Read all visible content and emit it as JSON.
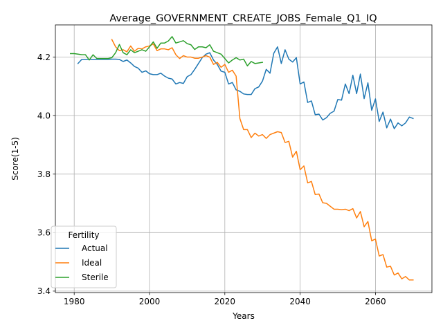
{
  "chart_data": {
    "type": "line",
    "title": "Average_GOVERNMENT_CREATE_JOBS_Female_Q1_IQ",
    "xlabel": "Years",
    "ylabel": "Score(1-5)",
    "xlim": [
      1975,
      2075
    ],
    "ylim": [
      3.395,
      4.31
    ],
    "xticks": [
      1980,
      2000,
      2020,
      2040,
      2060
    ],
    "yticks": [
      3.4,
      3.6,
      3.8,
      4.0,
      4.2
    ],
    "ytick_labels": [
      "3.4",
      "3.6",
      "3.8",
      "4.0",
      "4.2"
    ],
    "grid": true,
    "legend": {
      "title": "Fertility",
      "position": "lower-left"
    },
    "series": [
      {
        "name": "Actual",
        "color": "#1f77b4",
        "x": [
          1981,
          1982,
          1983,
          1984,
          1985,
          1986,
          1987,
          1988,
          1989,
          1990,
          1991,
          1992,
          1993,
          1994,
          1995,
          1996,
          1997,
          1998,
          1999,
          2000,
          2001,
          2002,
          2003,
          2004,
          2005,
          2006,
          2007,
          2008,
          2009,
          2010,
          2011,
          2012,
          2013,
          2014,
          2015,
          2016,
          2017,
          2018,
          2019,
          2020,
          2021,
          2022,
          2023,
          2024,
          2025,
          2026,
          2027,
          2028,
          2029,
          2030,
          2031,
          2032,
          2033,
          2034,
          2035,
          2036,
          2037,
          2038,
          2039,
          2040,
          2041,
          2042,
          2043,
          2044,
          2045,
          2046,
          2047,
          2048,
          2049,
          2050,
          2051,
          2052,
          2053,
          2054,
          2055,
          2056,
          2057,
          2058,
          2059,
          2060,
          2061,
          2062,
          2063,
          2064,
          2065,
          2066,
          2067,
          2068,
          2069,
          2070
        ],
        "y": [
          4.178,
          4.192,
          4.192,
          4.192,
          4.192,
          4.192,
          4.192,
          4.192,
          4.192,
          4.193,
          4.193,
          4.192,
          4.185,
          4.19,
          4.18,
          4.168,
          4.162,
          4.148,
          4.153,
          4.143,
          4.14,
          4.14,
          4.145,
          4.135,
          4.128,
          4.125,
          4.108,
          4.113,
          4.11,
          4.133,
          4.14,
          4.158,
          4.178,
          4.198,
          4.21,
          4.215,
          4.19,
          4.175,
          4.152,
          4.148,
          4.108,
          4.113,
          4.088,
          4.083,
          4.074,
          4.072,
          4.072,
          4.092,
          4.098,
          4.118,
          4.158,
          4.145,
          4.213,
          4.235,
          4.178,
          4.225,
          4.193,
          4.183,
          4.198,
          4.108,
          4.115,
          4.045,
          4.05,
          4.003,
          4.005,
          3.985,
          3.993,
          4.008,
          4.015,
          4.055,
          4.053,
          4.108,
          4.075,
          4.138,
          4.075,
          4.142,
          4.058,
          4.112,
          4.018,
          4.057,
          3.98,
          4.012,
          3.958,
          3.988,
          3.955,
          3.975,
          3.965,
          3.975,
          3.995,
          3.99
        ]
      },
      {
        "name": "Ideal",
        "color": "#ff7f0e",
        "x": [
          1990,
          1991,
          1992,
          1993,
          1994,
          1995,
          1996,
          1997,
          1998,
          1999,
          2000,
          2001,
          2002,
          2003,
          2004,
          2005,
          2006,
          2007,
          2008,
          2009,
          2010,
          2011,
          2012,
          2013,
          2014,
          2015,
          2016,
          2017,
          2018,
          2019,
          2020,
          2021,
          2022,
          2023,
          2024,
          2025,
          2026,
          2027,
          2028,
          2029,
          2030,
          2031,
          2032,
          2033,
          2034,
          2035,
          2036,
          2037,
          2038,
          2039,
          2040,
          2041,
          2042,
          2043,
          2044,
          2045,
          2046,
          2047,
          2048,
          2049,
          2050,
          2051,
          2052,
          2053,
          2054,
          2055,
          2056,
          2057,
          2058,
          2059,
          2060,
          2061,
          2062,
          2063,
          2064,
          2065,
          2066,
          2067,
          2068,
          2069,
          2070
        ],
        "y": [
          4.26,
          4.235,
          4.222,
          4.225,
          4.218,
          4.238,
          4.22,
          4.23,
          4.228,
          4.235,
          4.238,
          4.245,
          4.222,
          4.228,
          4.228,
          4.225,
          4.232,
          4.208,
          4.195,
          4.205,
          4.2,
          4.2,
          4.196,
          4.196,
          4.2,
          4.205,
          4.2,
          4.175,
          4.182,
          4.165,
          4.175,
          4.148,
          4.155,
          4.135,
          3.99,
          3.952,
          3.952,
          3.925,
          3.94,
          3.93,
          3.935,
          3.922,
          3.935,
          3.94,
          3.945,
          3.942,
          3.908,
          3.912,
          3.858,
          3.878,
          3.815,
          3.828,
          3.77,
          3.775,
          3.73,
          3.732,
          3.702,
          3.7,
          3.69,
          3.68,
          3.68,
          3.678,
          3.68,
          3.675,
          3.682,
          3.65,
          3.672,
          3.62,
          3.638,
          3.572,
          3.578,
          3.52,
          3.525,
          3.482,
          3.485,
          3.455,
          3.462,
          3.442,
          3.45,
          3.438,
          3.438
        ]
      },
      {
        "name": "Sterile",
        "color": "#2ca02c",
        "x": [
          1979,
          1980,
          1981,
          1982,
          1983,
          1984,
          1985,
          1986,
          1987,
          1988,
          1989,
          1990,
          1991,
          1992,
          1993,
          1994,
          1995,
          1996,
          1997,
          1998,
          1999,
          2000,
          2001,
          2002,
          2003,
          2004,
          2005,
          2006,
          2007,
          2008,
          2009,
          2010,
          2011,
          2012,
          2013,
          2014,
          2015,
          2016,
          2017,
          2018,
          2019,
          2020,
          2021,
          2022,
          2023,
          2024,
          2025,
          2026,
          2027,
          2028,
          2029,
          2030
        ],
        "y": [
          4.212,
          4.212,
          4.21,
          4.208,
          4.208,
          4.19,
          4.208,
          4.195,
          4.195,
          4.195,
          4.195,
          4.198,
          4.215,
          4.243,
          4.215,
          4.208,
          4.225,
          4.215,
          4.22,
          4.225,
          4.22,
          4.235,
          4.252,
          4.23,
          4.248,
          4.248,
          4.255,
          4.27,
          4.248,
          4.252,
          4.256,
          4.246,
          4.242,
          4.226,
          4.235,
          4.235,
          4.232,
          4.242,
          4.22,
          4.215,
          4.21,
          4.195,
          4.18,
          4.19,
          4.198,
          4.19,
          4.193,
          4.17,
          4.185,
          4.178,
          4.18,
          4.182
        ]
      }
    ]
  }
}
